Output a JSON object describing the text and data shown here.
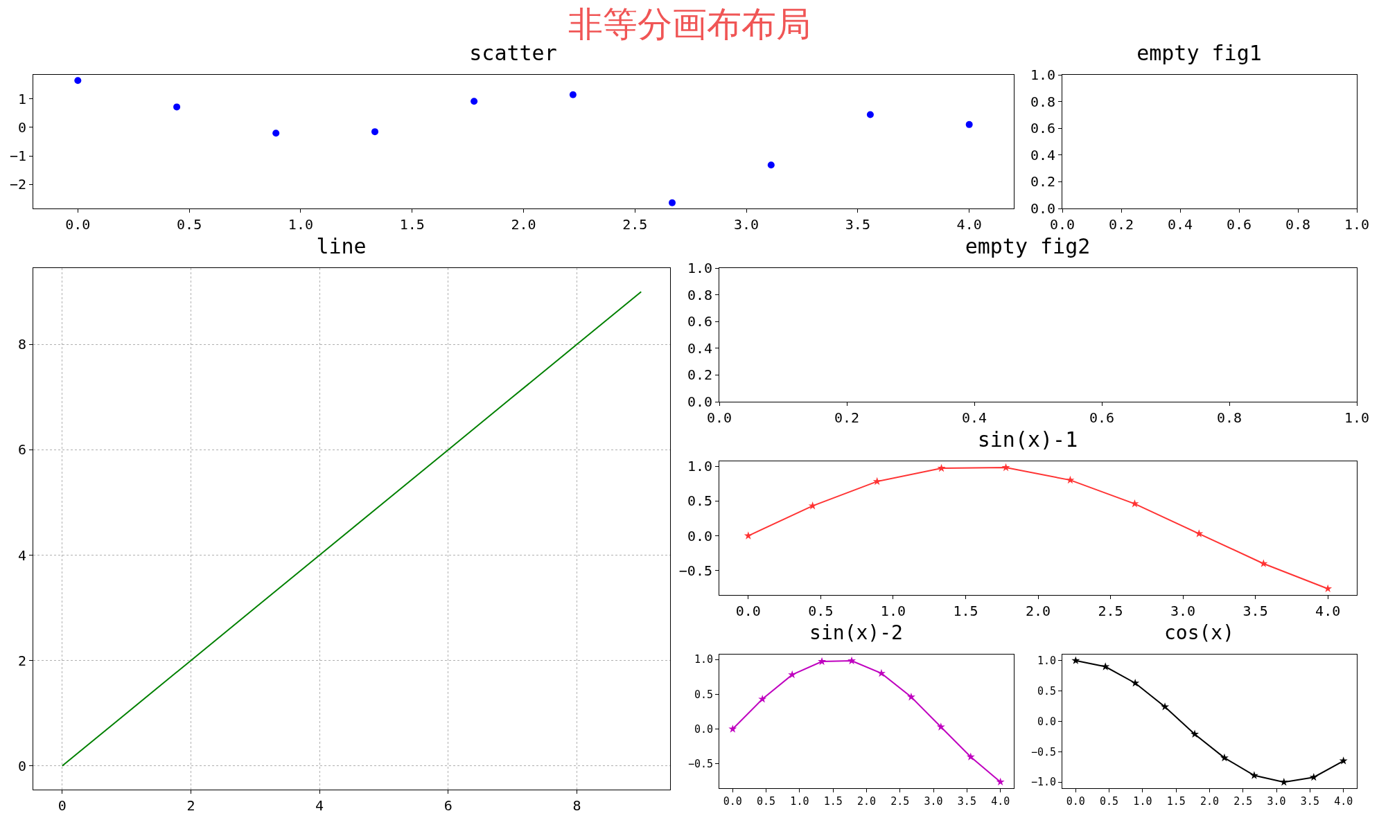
{
  "chart_data": [
    {
      "type": "scatter",
      "title": "scatter",
      "annotations": [
        "非等分画布布局"
      ],
      "marker": "circle",
      "grid": false,
      "x": [
        0,
        0.444,
        0.889,
        1.333,
        1.778,
        2.222,
        2.667,
        3.111,
        3.556,
        4.0
      ],
      "series": [
        {
          "color": "#0000ff",
          "values": [
            1.65,
            0.72,
            -0.2,
            -0.15,
            0.92,
            1.15,
            -2.65,
            -1.32,
            0.45,
            0.1
          ]
        }
      ],
      "xlim": [
        -0.2,
        4.2
      ],
      "ylim": [
        -2.85,
        1.85
      ],
      "xticks": [
        {
          "value": 0,
          "label": "0.0"
        },
        {
          "value": 0.5,
          "label": "0.5"
        },
        {
          "value": 1,
          "label": "1.0"
        },
        {
          "value": 1.5,
          "label": "1.5"
        },
        {
          "value": 2,
          "label": "2.0"
        },
        {
          "value": 2.5,
          "label": "2.5"
        },
        {
          "value": 3,
          "label": "3.0"
        },
        {
          "value": 3.5,
          "label": "3.5"
        },
        {
          "value": 4,
          "label": "4.0"
        }
      ],
      "yticks": [
        {
          "value": -2,
          "label": "−2"
        },
        {
          "value": -1,
          "label": "−1"
        },
        0,
        1
      ]
    },
    {
      "type": "line",
      "title": "empty fig1",
      "xlim": [
        0,
        1
      ],
      "ylim": [
        0,
        1
      ],
      "xticks": [
        {
          "value": 0,
          "label": "0.0"
        },
        {
          "value": 0.2,
          "label": "0.2"
        },
        {
          "value": 0.4,
          "label": "0.4"
        },
        {
          "value": 0.6,
          "label": "0.6"
        },
        {
          "value": 0.8,
          "label": "0.8"
        },
        {
          "value": 1,
          "label": "1.0"
        }
      ],
      "yticks": [
        {
          "value": 0,
          "label": "0.0"
        },
        {
          "value": 0.2,
          "label": "0.2"
        },
        {
          "value": 0.4,
          "label": "0.4"
        },
        {
          "value": 0.6,
          "label": "0.6"
        },
        {
          "value": 0.8,
          "label": "0.8"
        },
        {
          "value": 1,
          "label": "1.0"
        }
      ]
    },
    {
      "type": "line",
      "title": "line",
      "grid": true,
      "marker": "none",
      "line_style": "solid",
      "x": [
        0,
        1,
        2,
        3,
        4,
        5,
        6,
        7,
        8,
        9
      ],
      "series": [
        {
          "color": "#008000",
          "values": [
            0,
            1,
            2,
            3,
            4,
            5,
            6,
            7,
            8,
            9
          ]
        }
      ],
      "xlim": [
        -0.45,
        9.45
      ],
      "ylim": [
        -0.45,
        9.45
      ],
      "xticks": [
        0,
        2,
        4,
        6,
        8
      ],
      "yticks": [
        0,
        2,
        4,
        6,
        8
      ]
    },
    {
      "type": "line",
      "title": "empty fig2",
      "xlim": [
        0,
        1
      ],
      "ylim": [
        0,
        1
      ],
      "xticks": [
        {
          "value": 0,
          "label": "0.0"
        },
        {
          "value": 0.2,
          "label": "0.2"
        },
        {
          "value": 0.4,
          "label": "0.4"
        },
        {
          "value": 0.6,
          "label": "0.6"
        },
        {
          "value": 0.8,
          "label": "0.8"
        },
        {
          "value": 1,
          "label": "1.0"
        }
      ],
      "yticks": [
        {
          "value": 0,
          "label": "0.0"
        },
        {
          "value": 0.2,
          "label": "0.2"
        },
        {
          "value": 0.4,
          "label": "0.4"
        },
        {
          "value": 0.6,
          "label": "0.6"
        },
        {
          "value": 0.8,
          "label": "0.8"
        },
        {
          "value": 1,
          "label": "1.0"
        }
      ]
    },
    {
      "type": "line",
      "title": "sin(x)-1",
      "marker": "star",
      "line_style": "solid",
      "grid": false,
      "x": [
        0,
        0.444,
        0.889,
        1.333,
        1.778,
        2.222,
        2.667,
        3.111,
        3.556,
        4.0
      ],
      "series": [
        {
          "color": "#ff3333",
          "values": [
            0,
            0.43,
            0.78,
            0.97,
            0.98,
            0.8,
            0.46,
            0.03,
            -0.4,
            -0.76
          ]
        }
      ],
      "xlim": [
        -0.2,
        4.2
      ],
      "ylim": [
        -0.85,
        1.07
      ],
      "xticks": [
        {
          "value": 0,
          "label": "0.0"
        },
        {
          "value": 0.5,
          "label": "0.5"
        },
        {
          "value": 1,
          "label": "1.0"
        },
        {
          "value": 1.5,
          "label": "1.5"
        },
        {
          "value": 2,
          "label": "2.0"
        },
        {
          "value": 2.5,
          "label": "2.5"
        },
        {
          "value": 3,
          "label": "3.0"
        },
        {
          "value": 3.5,
          "label": "3.5"
        },
        {
          "value": 4,
          "label": "4.0"
        }
      ],
      "yticks": [
        {
          "value": -0.5,
          "label": "−0.5"
        },
        {
          "value": 0,
          "label": "0.0"
        },
        0.5,
        {
          "value": 1,
          "label": "1.0"
        }
      ]
    },
    {
      "type": "line",
      "title": "sin(x)-2",
      "marker": "star",
      "line_style": "solid",
      "grid": false,
      "x": [
        0,
        0.444,
        0.889,
        1.333,
        1.778,
        2.222,
        2.667,
        3.111,
        3.556,
        4.0
      ],
      "series": [
        {
          "color": "#bf00bf",
          "values": [
            0,
            0.43,
            0.78,
            0.97,
            0.98,
            0.8,
            0.46,
            0.03,
            -0.4,
            -0.76
          ]
        }
      ],
      "xlim": [
        -0.2,
        4.2
      ],
      "ylim": [
        -0.85,
        1.07
      ],
      "xticks": [
        {
          "value": 0,
          "label": "0.0"
        },
        {
          "value": 0.5,
          "label": "0.5"
        },
        {
          "value": 1,
          "label": "1.0"
        },
        {
          "value": 1.5,
          "label": "1.5"
        },
        {
          "value": 2,
          "label": "2.0"
        },
        {
          "value": 2.5,
          "label": "2.5"
        },
        {
          "value": 3,
          "label": "3.0"
        },
        {
          "value": 3.5,
          "label": "3.5"
        },
        {
          "value": 4,
          "label": "4.0"
        }
      ],
      "yticks": [
        {
          "value": -0.5,
          "label": "−0.5"
        },
        {
          "value": 0,
          "label": "0.0"
        },
        0.5,
        {
          "value": 1,
          "label": "1.0"
        }
      ]
    },
    {
      "type": "line",
      "title": "cos(x)",
      "marker": "star",
      "line_style": "solid",
      "grid": false,
      "x": [
        0,
        0.444,
        0.889,
        1.333,
        1.778,
        2.222,
        2.667,
        3.111,
        3.556,
        4.0
      ],
      "series": [
        {
          "color": "#000000",
          "values": [
            1,
            0.9,
            0.63,
            0.24,
            -0.21,
            -0.6,
            -0.89,
            -1.0,
            -0.92,
            -0.65
          ]
        }
      ],
      "xlim": [
        -0.2,
        4.2
      ],
      "ylim": [
        -1.1,
        1.1
      ],
      "xticks": [
        {
          "value": 0,
          "label": "0.0"
        },
        {
          "value": 0.5,
          "label": "0.5"
        },
        {
          "value": 1,
          "label": "1.0"
        },
        {
          "value": 1.5,
          "label": "1.5"
        },
        {
          "value": 2,
          "label": "2.0"
        },
        {
          "value": 2.5,
          "label": "2.5"
        },
        {
          "value": 3,
          "label": "3.0"
        },
        {
          "value": 3.5,
          "label": "3.5"
        },
        {
          "value": 4,
          "label": "4.0"
        }
      ],
      "yticks": [
        {
          "value": -1,
          "label": "−1.0"
        },
        {
          "value": -0.5,
          "label": "−0.5"
        },
        {
          "value": 0,
          "label": "0.0"
        },
        0.5,
        {
          "value": 1,
          "label": "1.0"
        }
      ]
    }
  ]
}
